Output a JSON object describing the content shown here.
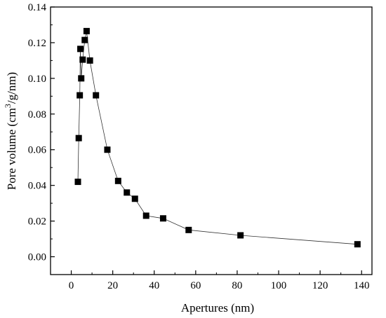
{
  "chart_data": {
    "type": "line",
    "title": "",
    "xlabel": "Apertures (nm)",
    "ylabel_parts": [
      "Pore volume (cm",
      "3",
      "/g/nm)"
    ],
    "xlim": [
      -10,
      145
    ],
    "ylim": [
      -0.01,
      0.14
    ],
    "xticks": [
      0,
      20,
      40,
      60,
      80,
      100,
      120,
      140
    ],
    "xtick_labels": [
      "0",
      "20",
      "40",
      "60",
      "80",
      "100",
      "120",
      "140"
    ],
    "yticks": [
      0.0,
      0.02,
      0.04,
      0.06,
      0.08,
      0.1,
      0.12,
      0.14
    ],
    "ytick_labels": [
      "0.00",
      "0.02",
      "0.04",
      "0.06",
      "0.08",
      "0.10",
      "0.12",
      "0.14"
    ],
    "grid": false,
    "marker": "square",
    "color": "#000000",
    "series": [
      {
        "x": [
          3.2,
          3.6,
          4.1,
          4.4,
          4.8,
          5.5,
          6.5,
          7.4,
          9.0,
          11.9,
          17.4,
          22.6,
          26.8,
          30.7,
          36.1,
          44.3,
          56.6,
          81.6,
          138.0
        ],
        "y": [
          0.042,
          0.0665,
          0.0905,
          0.1165,
          0.1,
          0.1105,
          0.1215,
          0.1265,
          0.11,
          0.0905,
          0.06,
          0.0425,
          0.036,
          0.0325,
          0.023,
          0.0215,
          0.015,
          0.012,
          0.007
        ]
      }
    ]
  }
}
